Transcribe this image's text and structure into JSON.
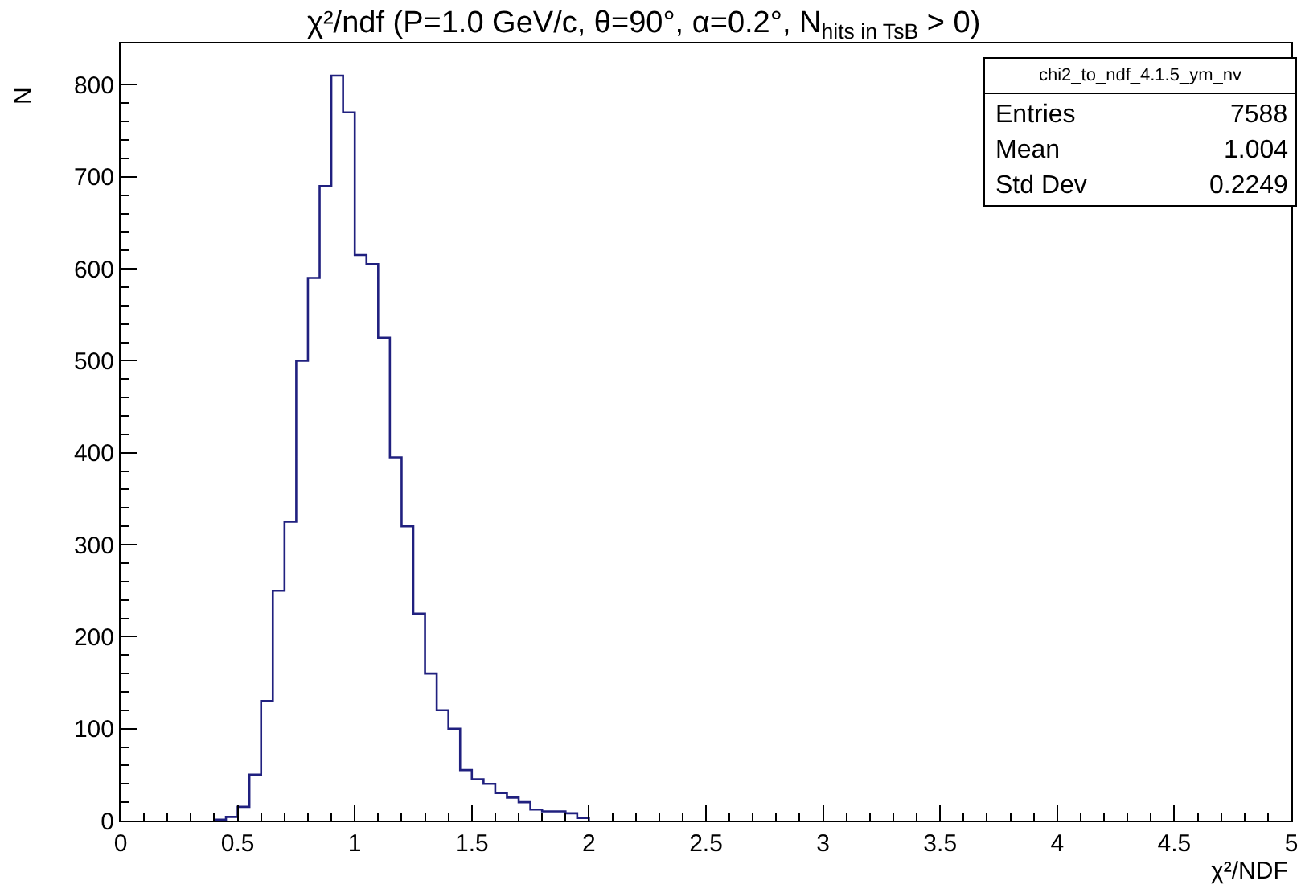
{
  "chart_data": {
    "type": "histogram",
    "title": "χ²/ndf (P=1.0 GeV/c, θ=90°, α=0.2°, N$_{hits in TsB}$ > 0)",
    "xlabel": "χ²/NDF",
    "ylabel": "N",
    "bins": [
      0.4,
      0.45,
      0.5,
      0.55,
      0.6,
      0.65,
      0.7,
      0.75,
      0.8,
      0.85,
      0.9,
      0.95,
      1.0,
      1.05,
      1.1,
      1.15,
      1.2,
      1.25,
      1.3,
      1.35,
      1.4,
      1.45,
      1.5,
      1.55,
      1.6,
      1.65,
      1.7,
      1.75,
      1.8,
      1.85,
      1.9,
      1.95,
      2.0
    ],
    "values": [
      1,
      4,
      15,
      50,
      130,
      250,
      325,
      500,
      590,
      690,
      810,
      770,
      615,
      605,
      525,
      395,
      320,
      225,
      160,
      120,
      100,
      55,
      45,
      40,
      30,
      25,
      20,
      12,
      10,
      10,
      8,
      3
    ],
    "color": "#20207f",
    "xlim": [
      0,
      5
    ],
    "xticks": [
      {
        "value": 0,
        "label": "0"
      },
      {
        "value": 0.5,
        "label": "0.5"
      },
      {
        "value": 1,
        "label": "1"
      },
      {
        "value": 1.5,
        "label": "1.5"
      },
      {
        "value": 2,
        "label": "2"
      },
      {
        "value": 2.5,
        "label": "2.5"
      },
      {
        "value": 3,
        "label": "3"
      },
      {
        "value": 3.5,
        "label": "3.5"
      },
      {
        "value": 4,
        "label": "4"
      },
      {
        "value": 4.5,
        "label": "4.5"
      },
      {
        "value": 5,
        "label": "5"
      }
    ],
    "ylim": [
      0,
      845
    ],
    "yticks": [
      0,
      100,
      200,
      300,
      400,
      500,
      600,
      700,
      800
    ],
    "annotations": [
      "chi2_to_ndf_4.1.5_ym_nv",
      "Entries",
      "7588",
      "Mean",
      "1.004",
      "Std Dev",
      "0.2249"
    ]
  }
}
